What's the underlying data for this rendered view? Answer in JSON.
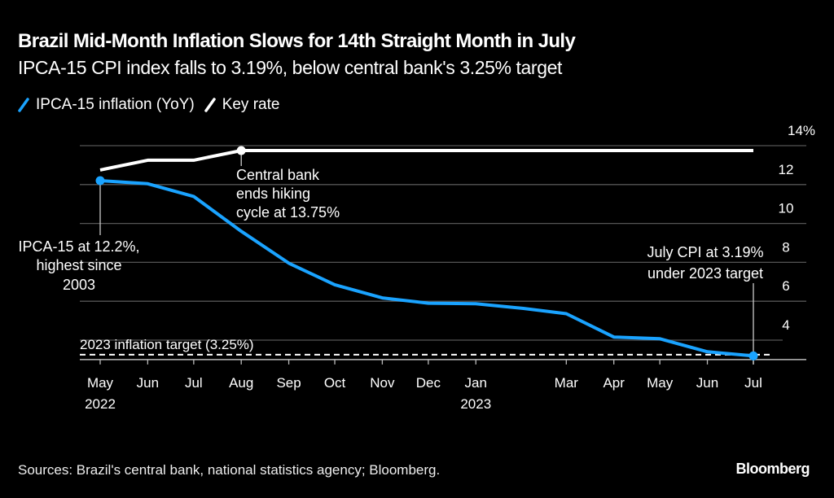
{
  "header": {
    "title": "Brazil Mid-Month Inflation Slows for 14th Straight Month in July",
    "subtitle": "IPCA-15 CPI index falls to 3.19%, below central bank's 3.25% target"
  },
  "legend": [
    {
      "label": "IPCA-15 inflation (YoY)",
      "color": "#1aa3ff",
      "icon": "slash-line-icon"
    },
    {
      "label": "Key rate",
      "color": "#ffffff",
      "icon": "slash-line-icon"
    }
  ],
  "footer": {
    "source": "Sources: Brazil's central bank, national statistics agency; Bloomberg.",
    "brand": "Bloomberg"
  },
  "chart_data": {
    "type": "line",
    "title": "Brazil Mid-Month Inflation Slows for 14th Straight Month in July",
    "subtitle": "IPCA-15 CPI index falls to 3.19%, below central bank's 3.25% target",
    "xlabel": "",
    "ylabel": "",
    "x": [
      "2022-05",
      "2022-06",
      "2022-07",
      "2022-08",
      "2022-09",
      "2022-10",
      "2022-11",
      "2022-12",
      "2023-01",
      "2023-02",
      "2023-03",
      "2023-04",
      "2023-05",
      "2023-06",
      "2023-07"
    ],
    "x_ticks": [
      {
        "x": "2022-05",
        "label": "May",
        "sublabel": "2022"
      },
      {
        "x": "2022-06",
        "label": "Jun"
      },
      {
        "x": "2022-07",
        "label": "Jul"
      },
      {
        "x": "2022-08",
        "label": "Aug"
      },
      {
        "x": "2022-09",
        "label": "Sep"
      },
      {
        "x": "2022-10",
        "label": "Oct"
      },
      {
        "x": "2022-11",
        "label": "Nov"
      },
      {
        "x": "2022-12",
        "label": "Dec"
      },
      {
        "x": "2023-01",
        "label": "Jan",
        "sublabel": "2023"
      },
      {
        "x": "2023-03",
        "label": "Mar"
      },
      {
        "x": "2023-04",
        "label": "Apr"
      },
      {
        "x": "2023-05",
        "label": "May"
      },
      {
        "x": "2023-06",
        "label": "Jun"
      },
      {
        "x": "2023-07",
        "label": "Jul"
      }
    ],
    "y_ticks": [
      4,
      6,
      8,
      10,
      12,
      14
    ],
    "y_tick_suffix_top": "%",
    "ylim": [
      3,
      14
    ],
    "y_axis_position": "right",
    "grid": true,
    "legend_position": "top-left",
    "series": [
      {
        "name": "IPCA-15 inflation (YoY)",
        "color": "#1aa3ff",
        "values": [
          12.2,
          12.04,
          11.39,
          9.6,
          7.96,
          6.85,
          6.17,
          5.9,
          5.87,
          5.63,
          5.36,
          4.16,
          4.07,
          3.4,
          3.19
        ]
      },
      {
        "name": "Key rate",
        "color": "#ffffff",
        "values": [
          12.75,
          13.25,
          13.25,
          13.75,
          13.75,
          13.75,
          13.75,
          13.75,
          13.75,
          13.75,
          13.75,
          13.75,
          13.75,
          13.75,
          13.75
        ]
      }
    ],
    "reference_lines": [
      {
        "label": "2023 inflation target (3.25%)",
        "value": 3.25,
        "style": "dashed"
      }
    ],
    "annotations": [
      {
        "series": "IPCA-15 inflation (YoY)",
        "x": "2022-05",
        "lines": [
          "IPCA-15 at 12.2%,",
          "highest since",
          "2003"
        ]
      },
      {
        "series": "Key rate",
        "x": "2022-08",
        "lines": [
          "Central bank",
          "ends hiking",
          "cycle at 13.75%"
        ]
      },
      {
        "series": "IPCA-15 inflation (YoY)",
        "x": "2023-07",
        "lines": [
          "July CPI at 3.19%",
          "under 2023 target"
        ]
      }
    ]
  }
}
